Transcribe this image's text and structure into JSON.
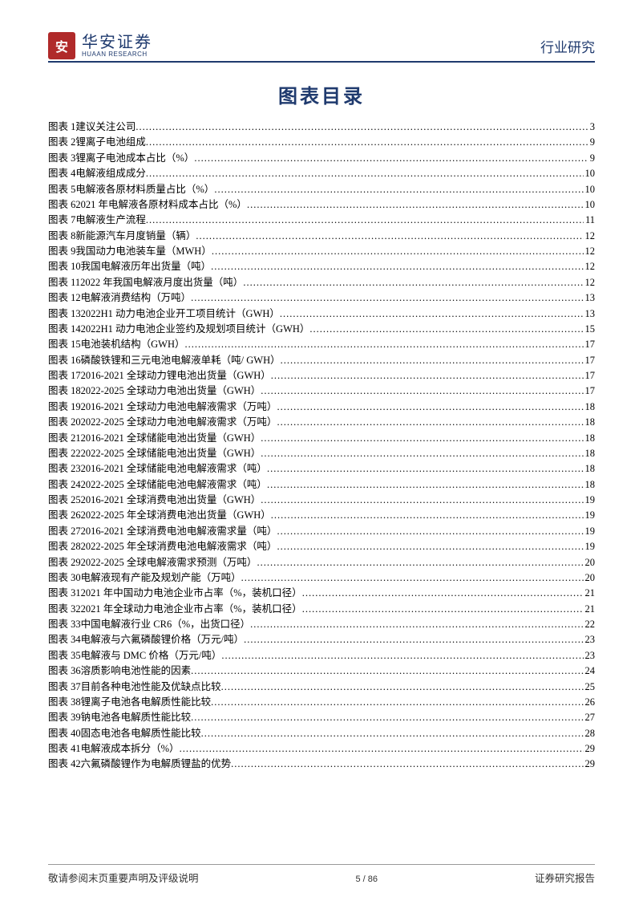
{
  "header": {
    "brand_cn": "华安证券",
    "brand_en": "HUAAN RESEARCH",
    "logo_glyph": "安",
    "right": "行业研究"
  },
  "title": "图表目录",
  "colors": {
    "brand_blue": "#1f3a6e",
    "logo_red": "#b02a2a",
    "rule": "#1f3a6e",
    "text": "#000000",
    "footer_rule": "#999999"
  },
  "typography": {
    "title_fontsize": 24,
    "toc_fontsize": 12.5,
    "header_right_fontsize": 17,
    "brand_cn_fontsize": 20,
    "footer_fontsize": 12.5
  },
  "toc_prefix": "图表",
  "toc": [
    {
      "n": "1",
      "label": "建议关注公司",
      "page": "3"
    },
    {
      "n": "2",
      "label": "锂离子电池组成",
      "page": "9"
    },
    {
      "n": "3",
      "label": "锂离子电池成本占比（%）",
      "page": "9"
    },
    {
      "n": "4",
      "label": "电解液组成成分",
      "page": "10"
    },
    {
      "n": "5",
      "label": "电解液各原材料质量占比（%）",
      "page": "10"
    },
    {
      "n": "6",
      "label": "2021 年电解液各原材料成本占比（%）",
      "page": "10"
    },
    {
      "n": "7",
      "label": "电解液生产流程",
      "page": "11"
    },
    {
      "n": "8",
      "label": "新能源汽车月度销量（辆）",
      "page": "12"
    },
    {
      "n": "9",
      "label": "我国动力电池装车量（MWH）",
      "page": "12"
    },
    {
      "n": "10",
      "label": "我国电解液历年出货量（吨）",
      "page": "12"
    },
    {
      "n": "11",
      "label": "2022 年我国电解液月度出货量（吨）",
      "page": "12"
    },
    {
      "n": "12",
      "label": "电解液消费结构（万吨）",
      "page": "13"
    },
    {
      "n": "13",
      "label": "2022H1 动力电池企业开工项目统计（GWH）",
      "page": "13"
    },
    {
      "n": "14",
      "label": "2022H1 动力电池企业签约及规划项目统计（GWH）",
      "page": "15"
    },
    {
      "n": "15",
      "label": "电池装机结构（GWH）",
      "page": "17"
    },
    {
      "n": "16",
      "label": "磷酸铁锂和三元电池电解液单耗（吨/ GWH）",
      "page": "17"
    },
    {
      "n": "17",
      "label": "2016-2021 全球动力锂电池出货量（GWH）",
      "page": "17"
    },
    {
      "n": "18",
      "label": "2022-2025 全球动力电池出货量（GWH）",
      "page": "17"
    },
    {
      "n": "19",
      "label": "2016-2021 全球动力电池电解液需求（万吨）",
      "page": "18"
    },
    {
      "n": "20",
      "label": "2022-2025 全球动力电池电解液需求（万吨）",
      "page": "18"
    },
    {
      "n": "21",
      "label": "2016-2021 全球储能电池出货量（GWH）",
      "page": "18"
    },
    {
      "n": "22",
      "label": "2022-2025 全球储能电池出货量（GWH）",
      "page": "18"
    },
    {
      "n": "23",
      "label": "2016-2021 全球储能电池电解液需求（吨）",
      "page": "18"
    },
    {
      "n": "24",
      "label": "2022-2025 全球储能电池电解液需求（吨）",
      "page": "18"
    },
    {
      "n": "25",
      "label": "2016-2021 全球消费电池出货量（GWH）",
      "page": "19"
    },
    {
      "n": "26",
      "label": "2022-2025 年全球消费电池出货量（GWH）",
      "page": "19"
    },
    {
      "n": "27",
      "label": "2016-2021 全球消费电池电解液需求量（吨）",
      "page": "19"
    },
    {
      "n": "28",
      "label": "2022-2025 年全球消费电池电解液需求（吨）",
      "page": "19"
    },
    {
      "n": "29",
      "label": "2022-2025 全球电解液需求预测（万吨）",
      "page": "20"
    },
    {
      "n": "30",
      "label": "电解液现有产能及规划产能（万吨）",
      "page": "20"
    },
    {
      "n": "31",
      "label": "2021 年中国动力电池企业市占率（%，装机口径）",
      "page": "21"
    },
    {
      "n": "32",
      "label": "2021 年全球动力电池企业市占率（%，装机口径）",
      "page": "21"
    },
    {
      "n": "33",
      "label": "中国电解液行业 CR6（%，出货口径）",
      "page": "22"
    },
    {
      "n": "34",
      "label": "电解液与六氟磷酸锂价格（万元/吨）",
      "page": "23"
    },
    {
      "n": "35",
      "label": "电解液与 DMC 价格（万元/吨）",
      "page": "23"
    },
    {
      "n": "36",
      "label": "溶质影响电池性能的因素",
      "page": "24"
    },
    {
      "n": "37",
      "label": "目前各种电池性能及优缺点比较",
      "page": "25"
    },
    {
      "n": "38",
      "label": "锂离子电池各电解质性能比较",
      "page": "26"
    },
    {
      "n": "39",
      "label": "钠电池各电解质性能比较",
      "page": "27"
    },
    {
      "n": "40",
      "label": "固态电池各电解质性能比较",
      "page": "28"
    },
    {
      "n": "41",
      "label": "电解液成本拆分（%）",
      "page": "29"
    },
    {
      "n": "42",
      "label": "六氟磷酸锂作为电解质锂盐的优势",
      "page": "29"
    }
  ],
  "footer": {
    "left": "敬请参阅末页重要声明及评级说明",
    "center": "5 / 86",
    "right": "证券研究报告"
  }
}
